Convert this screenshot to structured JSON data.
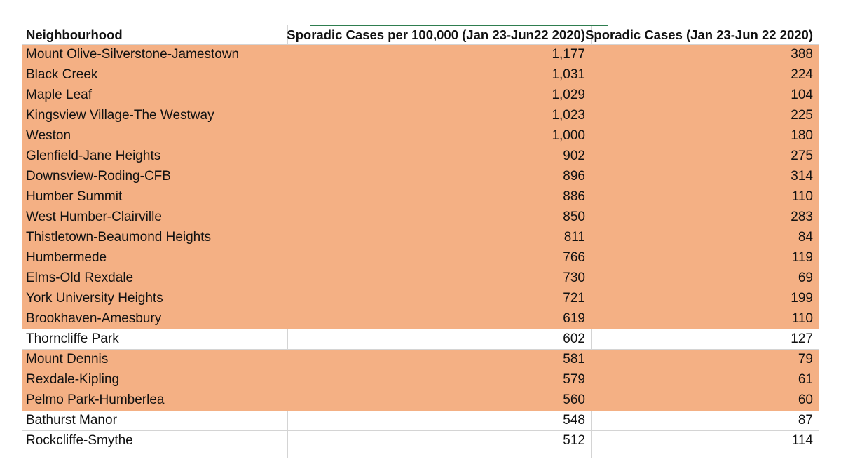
{
  "table": {
    "headers": [
      "Neighbourhood",
      "Sporadic Cases per 100,000 (Jan 23-Jun22 2020)",
      "Sporadic Cases (Jan 23-Jun 22 2020)"
    ],
    "highlight_color": "#f4b084",
    "rows": [
      {
        "neighbourhood": "Mount Olive-Silverstone-Jamestown",
        "rate": "1,177",
        "cases": "388",
        "highlighted": true
      },
      {
        "neighbourhood": "Black Creek",
        "rate": "1,031",
        "cases": "224",
        "highlighted": true
      },
      {
        "neighbourhood": "Maple Leaf",
        "rate": "1,029",
        "cases": "104",
        "highlighted": true
      },
      {
        "neighbourhood": "Kingsview Village-The Westway",
        "rate": "1,023",
        "cases": "225",
        "highlighted": true
      },
      {
        "neighbourhood": "Weston",
        "rate": "1,000",
        "cases": "180",
        "highlighted": true
      },
      {
        "neighbourhood": "Glenfield-Jane Heights",
        "rate": "902",
        "cases": "275",
        "highlighted": true
      },
      {
        "neighbourhood": "Downsview-Roding-CFB",
        "rate": "896",
        "cases": "314",
        "highlighted": true
      },
      {
        "neighbourhood": "Humber Summit",
        "rate": "886",
        "cases": "110",
        "highlighted": true
      },
      {
        "neighbourhood": "West Humber-Clairville",
        "rate": "850",
        "cases": "283",
        "highlighted": true
      },
      {
        "neighbourhood": "Thistletown-Beaumond Heights",
        "rate": "811",
        "cases": "84",
        "highlighted": true
      },
      {
        "neighbourhood": "Humbermede",
        "rate": "766",
        "cases": "119",
        "highlighted": true
      },
      {
        "neighbourhood": "Elms-Old Rexdale",
        "rate": "730",
        "cases": "69",
        "highlighted": true
      },
      {
        "neighbourhood": "York University Heights",
        "rate": "721",
        "cases": "199",
        "highlighted": true
      },
      {
        "neighbourhood": "Brookhaven-Amesbury",
        "rate": "619",
        "cases": "110",
        "highlighted": true
      },
      {
        "neighbourhood": "Thorncliffe Park",
        "rate": "602",
        "cases": "127",
        "highlighted": false
      },
      {
        "neighbourhood": "Mount Dennis",
        "rate": "581",
        "cases": "79",
        "highlighted": true
      },
      {
        "neighbourhood": "Rexdale-Kipling",
        "rate": "579",
        "cases": "61",
        "highlighted": true
      },
      {
        "neighbourhood": "Pelmo Park-Humberlea",
        "rate": "560",
        "cases": "60",
        "highlighted": true
      },
      {
        "neighbourhood": "Bathurst Manor",
        "rate": "548",
        "cases": "87",
        "highlighted": false
      },
      {
        "neighbourhood": "Rockcliffe-Smythe",
        "rate": "512",
        "cases": "114",
        "highlighted": false
      }
    ]
  }
}
